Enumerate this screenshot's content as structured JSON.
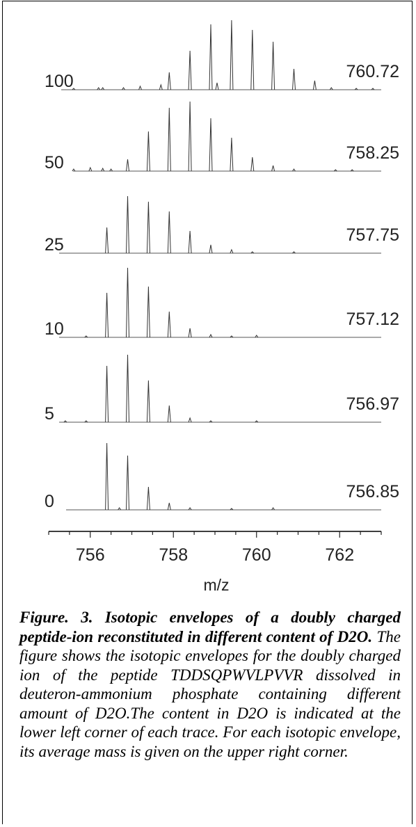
{
  "chart_data": {
    "type": "line",
    "xlabel": "m/z",
    "xlim": [
      755,
      763
    ],
    "x_ticks": [
      756,
      758,
      760,
      762
    ],
    "x_tick_labels": [
      "756",
      "758",
      "760",
      "762"
    ],
    "spacing": 0.5,
    "series": [
      {
        "name": "100",
        "average_mass": "760.72",
        "peaks": [
          [
            755.6,
            0.02
          ],
          [
            756.2,
            0.03
          ],
          [
            756.3,
            0.03
          ],
          [
            756.8,
            0.03
          ],
          [
            757.2,
            0.05
          ],
          [
            757.7,
            0.07
          ],
          [
            757.9,
            0.25
          ],
          [
            758.4,
            0.56
          ],
          [
            758.9,
            0.94
          ],
          [
            759.05,
            0.1
          ],
          [
            759.4,
            1.0
          ],
          [
            759.9,
            0.86
          ],
          [
            760.4,
            0.69
          ],
          [
            760.9,
            0.3
          ],
          [
            761.4,
            0.13
          ],
          [
            761.8,
            0.03
          ],
          [
            762.4,
            0.02
          ],
          [
            762.8,
            0.02
          ]
        ]
      },
      {
        "name": "50",
        "average_mass": "758.25",
        "peaks": [
          [
            755.6,
            0.03
          ],
          [
            756.0,
            0.05
          ],
          [
            756.3,
            0.04
          ],
          [
            756.5,
            0.03
          ],
          [
            756.9,
            0.17
          ],
          [
            757.4,
            0.57
          ],
          [
            757.9,
            0.91
          ],
          [
            758.4,
            1.0
          ],
          [
            758.9,
            0.76
          ],
          [
            759.4,
            0.48
          ],
          [
            759.9,
            0.2
          ],
          [
            760.4,
            0.08
          ],
          [
            760.9,
            0.03
          ],
          [
            761.9,
            0.02
          ],
          [
            762.3,
            0.02
          ]
        ]
      },
      {
        "name": "25",
        "average_mass": "757.75",
        "peaks": [
          [
            756.4,
            0.37
          ],
          [
            756.9,
            0.82
          ],
          [
            757.4,
            0.74
          ],
          [
            757.9,
            0.6
          ],
          [
            758.4,
            0.32
          ],
          [
            758.9,
            0.12
          ],
          [
            759.4,
            0.05
          ],
          [
            759.9,
            0.02
          ],
          [
            760.9,
            0.02
          ]
        ]
      },
      {
        "name": "10",
        "average_mass": "757.12",
        "peaks": [
          [
            755.9,
            0.02
          ],
          [
            756.4,
            0.64
          ],
          [
            756.9,
            1.0
          ],
          [
            757.4,
            0.73
          ],
          [
            757.9,
            0.37
          ],
          [
            758.4,
            0.13
          ],
          [
            758.9,
            0.04
          ],
          [
            759.4,
            0.02
          ],
          [
            760.0,
            0.03
          ]
        ]
      },
      {
        "name": "5",
        "average_mass": "756.97",
        "peaks": [
          [
            755.4,
            0.02
          ],
          [
            755.9,
            0.02
          ],
          [
            756.4,
            0.81
          ],
          [
            756.9,
            0.97
          ],
          [
            757.4,
            0.6
          ],
          [
            757.9,
            0.24
          ],
          [
            758.4,
            0.06
          ],
          [
            758.9,
            0.02
          ],
          [
            760.0,
            0.02
          ]
        ]
      },
      {
        "name": "0",
        "average_mass": "756.85",
        "peaks": [
          [
            756.4,
            0.96
          ],
          [
            756.7,
            0.03
          ],
          [
            756.9,
            0.78
          ],
          [
            757.4,
            0.33
          ],
          [
            757.9,
            0.1
          ],
          [
            758.4,
            0.03
          ],
          [
            759.4,
            0.02
          ],
          [
            760.4,
            0.03
          ]
        ]
      }
    ]
  },
  "caption": {
    "bold": "Figure. 3. Isotopic envelopes of a doubly charged peptide-ion reconstituted in different content of D2O.",
    "text": " The figure shows the isotopic envelopes for the doubly charged ion of the peptide TDDSQPWVLPVVR dissolved in deuteron-ammonium phosphate containing different amount of D2O.The content in D2O is indicated at the lower left corner of each trace. For each isotopic envelope, its average mass is given on the upper right corner."
  }
}
